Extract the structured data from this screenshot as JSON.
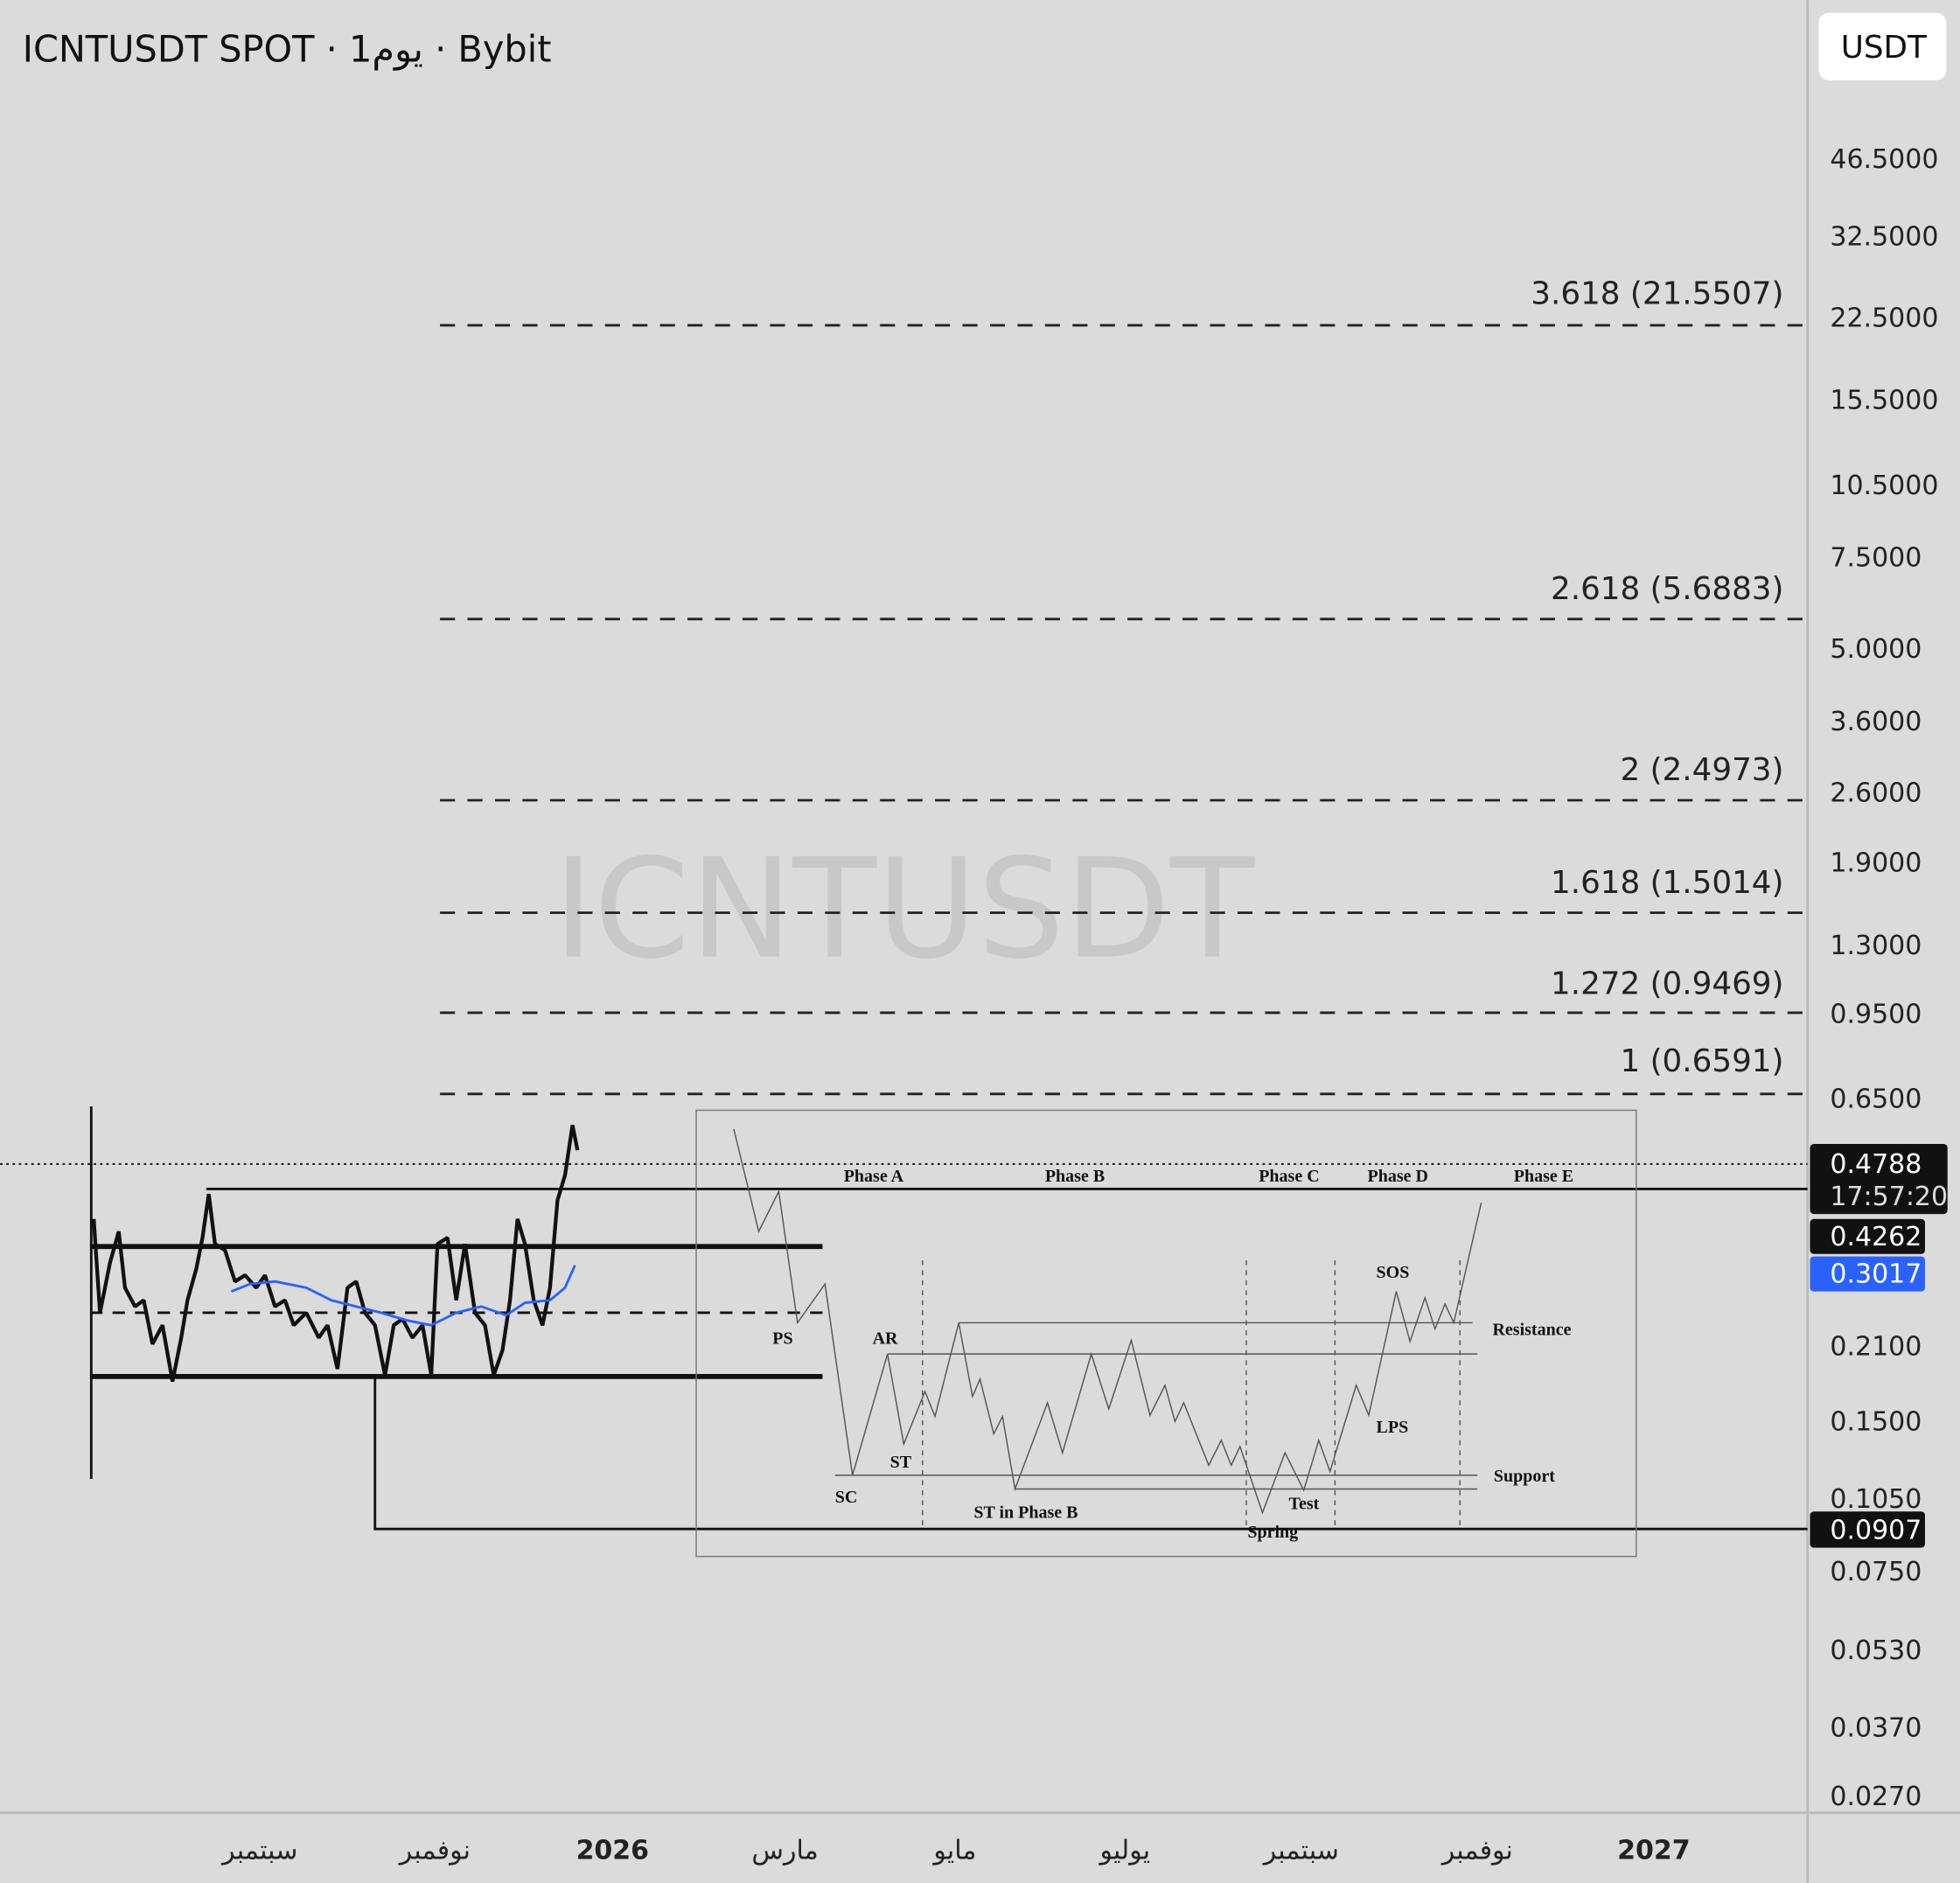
{
  "header": {
    "title": "ICNTUSDT SPOT · 1يوم · Bybit",
    "currency_button": "USDT"
  },
  "watermark": "ICNTUSDT",
  "price_axis": [
    "46.5000",
    "32.5000",
    "22.5000",
    "15.5000",
    "10.5000",
    "7.5000",
    "5.0000",
    "3.6000",
    "2.6000",
    "1.9000",
    "1.3000",
    "0.9500",
    "0.6500",
    "0.2100",
    "0.1500",
    "0.1050",
    "0.0750",
    "0.0530",
    "0.0370",
    "0.0270"
  ],
  "price_badges": {
    "last_price": "0.4788",
    "countdown": "17:57:20",
    "level_1": "0.4262",
    "level_2": "0.3017",
    "level_3": "0.0907"
  },
  "fib_levels": [
    "3.618 (21.5507)",
    "2.618 (5.6883)",
    "2 (2.4973)",
    "1.618 (1.5014)",
    "1.272 (0.9469)",
    "1 (0.6591)"
  ],
  "time_axis": [
    "سبتمبر",
    "نوفمبر",
    "2026",
    "مارس",
    "مايو",
    "يوليو",
    "سبتمبر",
    "نوفمبر",
    "2027"
  ],
  "wyckoff": {
    "phases": [
      "Phase A",
      "Phase B",
      "Phase C",
      "Phase D",
      "Phase E"
    ],
    "labels": [
      "PS",
      "SC",
      "AR",
      "ST",
      "ST in Phase B",
      "Spring",
      "Test",
      "SOS",
      "LPS",
      "Resistance",
      "Support"
    ]
  }
}
